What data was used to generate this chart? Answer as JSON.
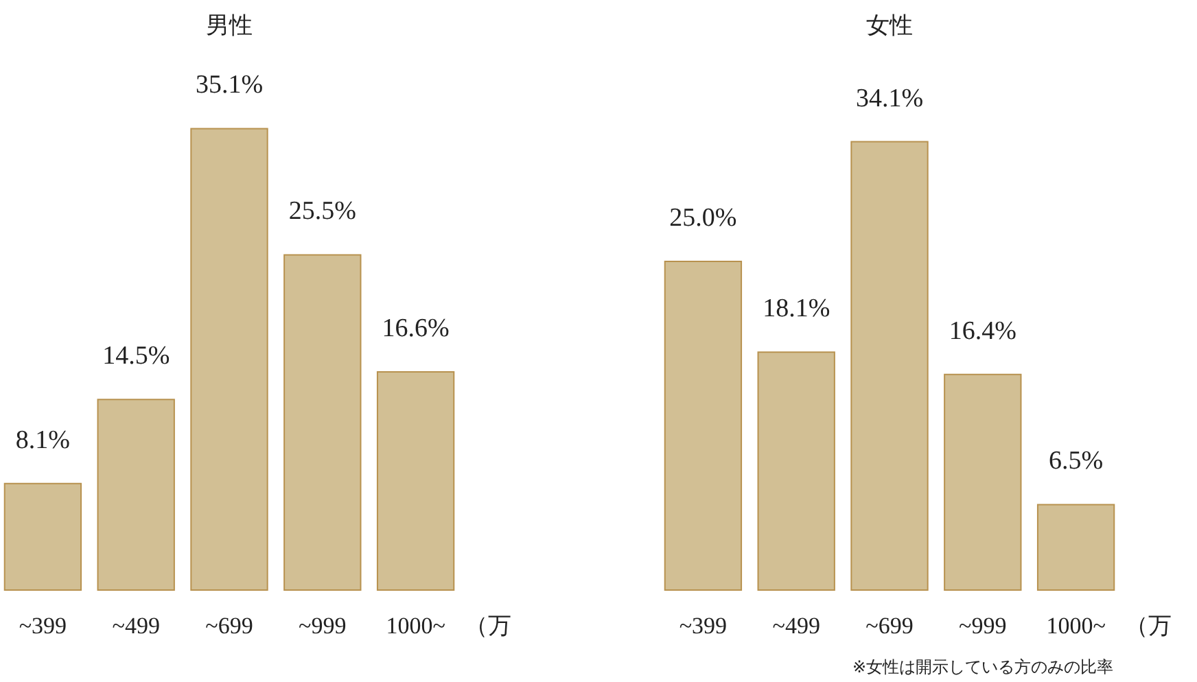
{
  "chart_data": [
    {
      "type": "bar",
      "title": "男性",
      "categories": [
        "~399",
        "~499",
        "~699",
        "~999",
        "1000~"
      ],
      "values": [
        8.1,
        14.5,
        35.1,
        25.5,
        16.6
      ],
      "color": "#d2bf94",
      "xlabel": "（万",
      "value_labels": [
        "8.1%",
        "14.5%",
        "35.1%",
        "25.5%",
        "16.6%"
      ]
    },
    {
      "type": "bar",
      "title": "女性",
      "categories": [
        "~399",
        "~499",
        "~699",
        "~999",
        "1000~"
      ],
      "values": [
        25.0,
        18.1,
        34.1,
        16.4,
        6.5
      ],
      "color": "#d2bf94",
      "xlabel": "（万",
      "value_labels": [
        "25.0%",
        "18.1%",
        "34.1%",
        "16.4%",
        "6.5%"
      ],
      "annotations": [
        "※女性は開示している方のみの比率"
      ]
    }
  ]
}
